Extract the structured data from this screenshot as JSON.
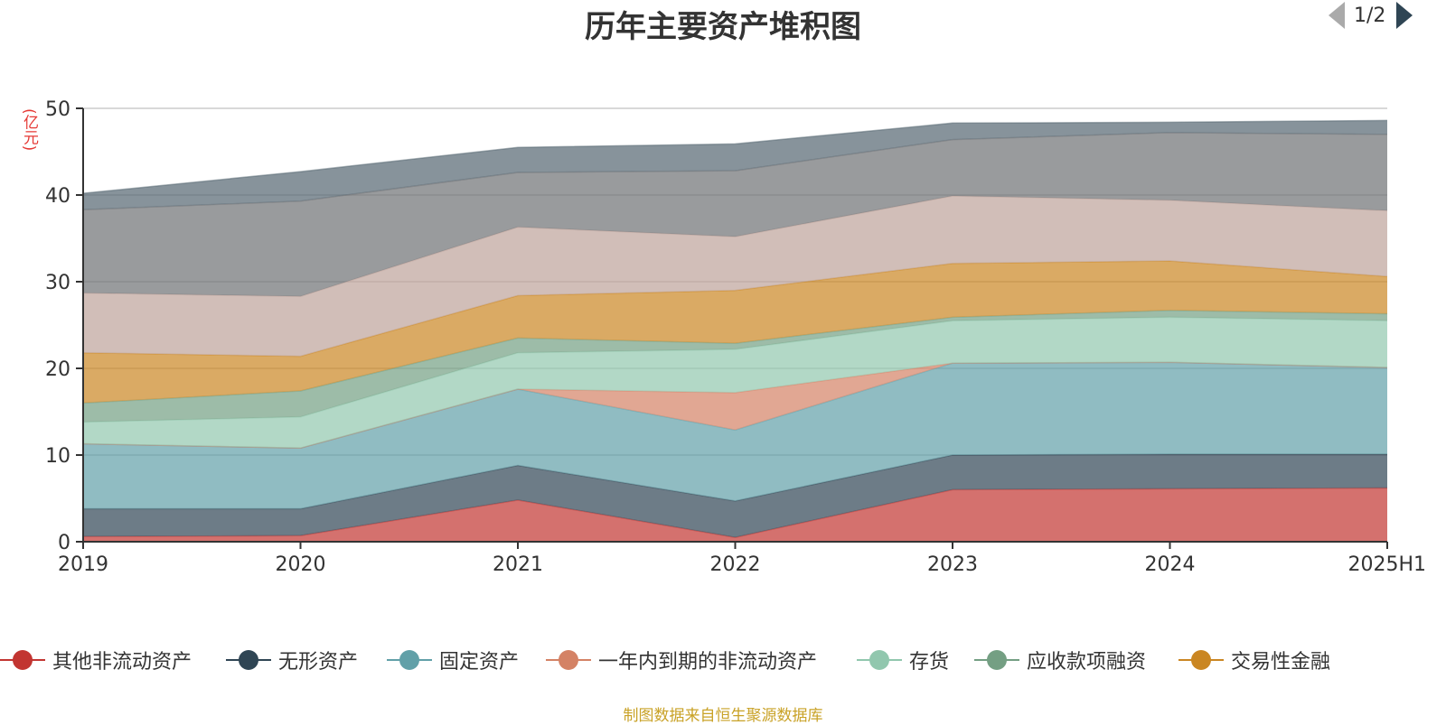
{
  "title": "历年主要资产堆积图",
  "y_unit": "(亿元)",
  "source_note": "制图数据来自恒生聚源数据库",
  "legend": {
    "visible_items": [
      "其他非流动资产",
      "无形资产",
      "固定资产",
      "一年内到期的非流动资产",
      "存货",
      "应收款项融资",
      "交易性金融"
    ],
    "page_text": "1/2",
    "prev_icon": "triangle-left-icon",
    "next_icon": "triangle-right-icon"
  },
  "chart_data": {
    "type": "area",
    "stacked": true,
    "title": "历年主要资产堆积图",
    "ylabel": "(亿元)",
    "ylim": [
      0,
      50
    ],
    "yticks": [
      0,
      10,
      20,
      30,
      40,
      50
    ],
    "grid": true,
    "legend_position": "bottom",
    "categories": [
      "2019",
      "2020",
      "2021",
      "2022",
      "2023",
      "2024",
      "2025H1"
    ],
    "series": [
      {
        "name": "其他非流动资产",
        "color": "#c23531",
        "values": [
          0.6,
          0.7,
          4.8,
          0.5,
          6.0,
          6.1,
          6.2
        ]
      },
      {
        "name": "无形资产",
        "color": "#2f4554",
        "values": [
          3.2,
          3.1,
          4.0,
          4.2,
          4.0,
          4.0,
          3.9
        ]
      },
      {
        "name": "固定资产",
        "color": "#61a0a8",
        "values": [
          7.5,
          7.0,
          8.8,
          8.2,
          10.6,
          10.6,
          10.0
        ]
      },
      {
        "name": "一年内到期的非流动资产",
        "color": "#d48265",
        "values": [
          0.0,
          0.0,
          0.0,
          4.3,
          0.0,
          0.0,
          0.0
        ]
      },
      {
        "name": "存货",
        "color": "#91c7ae",
        "values": [
          2.5,
          3.6,
          4.2,
          5.0,
          4.9,
          5.2,
          5.4
        ]
      },
      {
        "name": "应收款项融资",
        "color": "#749f83",
        "values": [
          2.2,
          3.0,
          1.7,
          0.7,
          0.4,
          0.8,
          0.8
        ]
      },
      {
        "name": "交易性金融",
        "color": "#ca8622",
        "values": [
          5.8,
          4.0,
          4.9,
          6.1,
          6.2,
          5.7,
          4.3
        ]
      },
      {
        "name": "",
        "color": "#bda29a",
        "values": [
          6.9,
          6.9,
          7.9,
          6.2,
          7.8,
          7.0,
          7.6
        ]
      },
      {
        "name": "",
        "color": "#6e7074",
        "values": [
          9.6,
          11.0,
          6.3,
          7.6,
          6.5,
          7.8,
          8.8
        ]
      },
      {
        "name": "",
        "color": "#546570",
        "values": [
          1.9,
          3.4,
          2.9,
          3.1,
          1.9,
          1.2,
          1.6
        ]
      }
    ]
  }
}
